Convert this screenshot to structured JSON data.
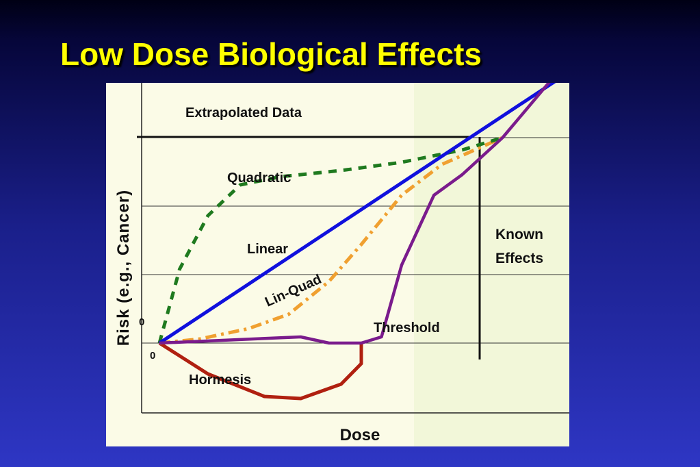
{
  "slide": {
    "title": "Low Dose Biological Effects"
  },
  "chart_data": {
    "type": "line",
    "xlabel": "Dose",
    "ylabel": "Risk (e.g., Cancer)",
    "y_zero_label": "0",
    "x_zero_label": "0",
    "grid": "horizontal",
    "region_labels": {
      "extrapolated": "Extrapolated Data",
      "known_line1": "Known",
      "known_line2": "Effects"
    },
    "colors": {
      "background": "#fbfbe7",
      "known_region": "#f2f7d9",
      "linear": "#1010dd",
      "quadratic": "#1f7a1f",
      "lin_quad": "#f0a030",
      "threshold": "#7a1b8c",
      "hormesis": "#b02010"
    },
    "series": [
      {
        "name": "Linear",
        "style": "solid",
        "points": [
          [
            0,
            0
          ],
          [
            1,
            1.3
          ]
        ]
      },
      {
        "name": "Quadratic",
        "style": "dashed",
        "points": [
          [
            0,
            0
          ],
          [
            0.05,
            0.36
          ],
          [
            0.12,
            0.62
          ],
          [
            0.2,
            0.77
          ],
          [
            0.3,
            0.81
          ],
          [
            0.45,
            0.84
          ],
          [
            0.6,
            0.88
          ],
          [
            0.75,
            0.94
          ],
          [
            0.85,
            1.0
          ]
        ]
      },
      {
        "name": "Lin-Quad",
        "style": "dash-dot",
        "points": [
          [
            0,
            0
          ],
          [
            0.1,
            0.02
          ],
          [
            0.22,
            0.07
          ],
          [
            0.32,
            0.14
          ],
          [
            0.42,
            0.3
          ],
          [
            0.5,
            0.48
          ],
          [
            0.6,
            0.72
          ],
          [
            0.7,
            0.87
          ],
          [
            0.85,
            1.0
          ]
        ]
      },
      {
        "name": "Threshold",
        "style": "solid",
        "points": [
          [
            0,
            0
          ],
          [
            0.35,
            0.03
          ],
          [
            0.42,
            0.0
          ],
          [
            0.5,
            0.0
          ],
          [
            0.55,
            0.03
          ],
          [
            0.6,
            0.38
          ],
          [
            0.68,
            0.72
          ],
          [
            0.75,
            0.82
          ],
          [
            0.85,
            1.0
          ],
          [
            1.0,
            1.35
          ]
        ]
      },
      {
        "name": "Hormesis",
        "style": "solid",
        "points": [
          [
            0,
            0
          ],
          [
            0.12,
            -0.15
          ],
          [
            0.26,
            -0.26
          ],
          [
            0.35,
            -0.27
          ],
          [
            0.45,
            -0.2
          ],
          [
            0.5,
            -0.1
          ],
          [
            0.5,
            0.0
          ]
        ]
      }
    ]
  }
}
